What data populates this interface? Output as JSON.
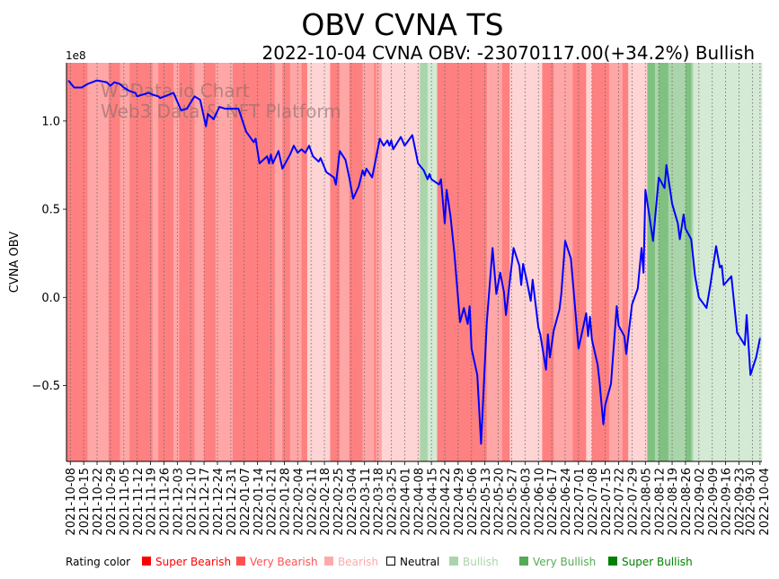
{
  "chart_data": {
    "type": "line",
    "title": "OBV CVNA TS",
    "subtitle": "2022-10-04 CVNA OBV: -23070117.00(+34.2%) Bullish",
    "ylabel": "CVNA OBV",
    "y_scale_label": "1e8",
    "y_multiplier": 100000000,
    "xlim": [
      "2021-10-06",
      "2022-10-05"
    ],
    "ylim": [
      -0.93,
      1.33
    ],
    "y_ticks": [
      {
        "v": 1.0,
        "label": "1.0"
      },
      {
        "v": 0.5,
        "label": "0.5"
      },
      {
        "v": 0.0,
        "label": "0.0"
      },
      {
        "v": -0.5,
        "label": "−0.5"
      }
    ],
    "x_ticks": [
      "2021-10-08",
      "2021-10-15",
      "2021-10-22",
      "2021-10-29",
      "2021-11-05",
      "2021-11-12",
      "2021-11-19",
      "2021-11-26",
      "2021-12-03",
      "2021-12-10",
      "2021-12-17",
      "2021-12-24",
      "2021-12-31",
      "2022-01-07",
      "2022-01-14",
      "2022-01-21",
      "2022-01-28",
      "2022-02-04",
      "2022-02-11",
      "2022-02-18",
      "2022-02-25",
      "2022-03-04",
      "2022-03-11",
      "2022-03-18",
      "2022-03-25",
      "2022-04-01",
      "2022-04-08",
      "2022-04-15",
      "2022-04-22",
      "2022-04-29",
      "2022-05-06",
      "2022-05-13",
      "2022-05-20",
      "2022-05-27",
      "2022-06-03",
      "2022-06-10",
      "2022-06-17",
      "2022-06-24",
      "2022-07-01",
      "2022-07-08",
      "2022-07-15",
      "2022-07-22",
      "2022-07-29",
      "2022-08-05",
      "2022-08-12",
      "2022-08-19",
      "2022-08-26",
      "2022-09-02",
      "2022-09-09",
      "2022-09-16",
      "2022-09-23",
      "2022-09-30",
      "2022-10-04"
    ],
    "grid": "vertical dotted",
    "watermark": [
      "W3Data.io Chart",
      "Web3 Data & NFT Platform"
    ],
    "series": [
      {
        "name": "CVNA OBV",
        "color": "#0000ff",
        "points": [
          [
            "2021-10-07",
            1.23
          ],
          [
            "2021-10-10",
            1.19
          ],
          [
            "2021-10-14",
            1.19
          ],
          [
            "2021-10-17",
            1.21
          ],
          [
            "2021-10-22",
            1.23
          ],
          [
            "2021-10-27",
            1.22
          ],
          [
            "2021-10-29",
            1.2
          ],
          [
            "2021-10-31",
            1.22
          ],
          [
            "2021-11-03",
            1.21
          ],
          [
            "2021-11-05",
            1.19
          ],
          [
            "2021-11-08",
            1.17
          ],
          [
            "2021-11-11",
            1.16
          ],
          [
            "2021-11-12",
            1.14
          ],
          [
            "2021-11-18",
            1.16
          ],
          [
            "2021-11-20",
            1.15
          ],
          [
            "2021-11-23",
            1.14
          ],
          [
            "2021-11-24",
            1.13
          ],
          [
            "2021-12-01",
            1.16
          ],
          [
            "2021-12-05",
            1.06
          ],
          [
            "2021-12-08",
            1.07
          ],
          [
            "2021-12-12",
            1.14
          ],
          [
            "2021-12-15",
            1.12
          ],
          [
            "2021-12-18",
            0.97
          ],
          [
            "2021-12-19",
            1.04
          ],
          [
            "2021-12-22",
            1.01
          ],
          [
            "2021-12-25",
            1.08
          ],
          [
            "2021-12-28",
            1.07
          ],
          [
            "2021-12-31",
            1.07
          ],
          [
            "2022-01-04",
            1.07
          ],
          [
            "2022-01-08",
            0.94
          ],
          [
            "2022-01-12",
            0.88
          ],
          [
            "2022-01-13",
            0.9
          ],
          [
            "2022-01-15",
            0.76
          ],
          [
            "2022-01-19",
            0.8
          ],
          [
            "2022-01-20",
            0.76
          ],
          [
            "2022-01-21",
            0.81
          ],
          [
            "2022-01-22",
            0.76
          ],
          [
            "2022-01-25",
            0.83
          ],
          [
            "2022-01-27",
            0.73
          ],
          [
            "2022-01-31",
            0.81
          ],
          [
            "2022-02-02",
            0.86
          ],
          [
            "2022-02-04",
            0.82
          ],
          [
            "2022-02-06",
            0.84
          ],
          [
            "2022-02-08",
            0.82
          ],
          [
            "2022-02-10",
            0.86
          ],
          [
            "2022-02-12",
            0.8
          ],
          [
            "2022-02-15",
            0.77
          ],
          [
            "2022-02-16",
            0.79
          ],
          [
            "2022-02-19",
            0.71
          ],
          [
            "2022-02-23",
            0.68
          ],
          [
            "2022-02-24",
            0.64
          ],
          [
            "2022-02-26",
            0.83
          ],
          [
            "2022-03-01",
            0.78
          ],
          [
            "2022-03-03",
            0.68
          ],
          [
            "2022-03-05",
            0.56
          ],
          [
            "2022-03-08",
            0.63
          ],
          [
            "2022-03-10",
            0.72
          ],
          [
            "2022-03-11",
            0.69
          ],
          [
            "2022-03-12",
            0.73
          ],
          [
            "2022-03-15",
            0.68
          ],
          [
            "2022-03-19",
            0.9
          ],
          [
            "2022-03-21",
            0.86
          ],
          [
            "2022-03-23",
            0.89
          ],
          [
            "2022-03-24",
            0.86
          ],
          [
            "2022-03-25",
            0.89
          ],
          [
            "2022-03-26",
            0.84
          ],
          [
            "2022-03-30",
            0.91
          ],
          [
            "2022-04-01",
            0.86
          ],
          [
            "2022-04-05",
            0.92
          ],
          [
            "2022-04-08",
            0.76
          ],
          [
            "2022-04-11",
            0.72
          ],
          [
            "2022-04-13",
            0.67
          ],
          [
            "2022-04-14",
            0.7
          ],
          [
            "2022-04-15",
            0.67
          ],
          [
            "2022-04-19",
            0.64
          ],
          [
            "2022-04-20",
            0.67
          ],
          [
            "2022-04-22",
            0.42
          ],
          [
            "2022-04-23",
            0.61
          ],
          [
            "2022-04-25",
            0.46
          ],
          [
            "2022-04-27",
            0.25
          ],
          [
            "2022-04-30",
            -0.14
          ],
          [
            "2022-05-02",
            -0.06
          ],
          [
            "2022-05-04",
            -0.15
          ],
          [
            "2022-05-05",
            -0.05
          ],
          [
            "2022-05-06",
            -0.29
          ],
          [
            "2022-05-09",
            -0.44
          ],
          [
            "2022-05-11",
            -0.83
          ],
          [
            "2022-05-14",
            -0.14
          ],
          [
            "2022-05-17",
            0.28
          ],
          [
            "2022-05-19",
            0.02
          ],
          [
            "2022-05-21",
            0.14
          ],
          [
            "2022-05-23",
            0.03
          ],
          [
            "2022-05-24",
            -0.1
          ],
          [
            "2022-05-28",
            0.28
          ],
          [
            "2022-05-31",
            0.18
          ],
          [
            "2022-06-01",
            0.07
          ],
          [
            "2022-06-02",
            0.19
          ],
          [
            "2022-06-04",
            0.09
          ],
          [
            "2022-06-06",
            -0.02
          ],
          [
            "2022-06-07",
            0.1
          ],
          [
            "2022-06-10",
            -0.17
          ],
          [
            "2022-06-11",
            -0.21
          ],
          [
            "2022-06-14",
            -0.41
          ],
          [
            "2022-06-15",
            -0.21
          ],
          [
            "2022-06-16",
            -0.34
          ],
          [
            "2022-06-18",
            -0.19
          ],
          [
            "2022-06-21",
            -0.07
          ],
          [
            "2022-06-22",
            0.02
          ],
          [
            "2022-06-24",
            0.32
          ],
          [
            "2022-06-27",
            0.22
          ],
          [
            "2022-07-01",
            -0.29
          ],
          [
            "2022-07-05",
            -0.09
          ],
          [
            "2022-07-06",
            -0.22
          ],
          [
            "2022-07-07",
            -0.11
          ],
          [
            "2022-07-08",
            -0.24
          ],
          [
            "2022-07-11",
            -0.38
          ],
          [
            "2022-07-12",
            -0.48
          ],
          [
            "2022-07-14",
            -0.72
          ],
          [
            "2022-07-15",
            -0.61
          ],
          [
            "2022-07-18",
            -0.49
          ],
          [
            "2022-07-21",
            -0.05
          ],
          [
            "2022-07-22",
            -0.16
          ],
          [
            "2022-07-25",
            -0.22
          ],
          [
            "2022-07-26",
            -0.32
          ],
          [
            "2022-07-29",
            -0.04
          ],
          [
            "2022-08-01",
            0.05
          ],
          [
            "2022-08-03",
            0.28
          ],
          [
            "2022-08-04",
            0.14
          ],
          [
            "2022-08-05",
            0.61
          ],
          [
            "2022-08-07",
            0.47
          ],
          [
            "2022-08-09",
            0.32
          ],
          [
            "2022-08-12",
            0.68
          ],
          [
            "2022-08-15",
            0.62
          ],
          [
            "2022-08-16",
            0.75
          ],
          [
            "2022-08-19",
            0.53
          ],
          [
            "2022-08-22",
            0.42
          ],
          [
            "2022-08-23",
            0.33
          ],
          [
            "2022-08-25",
            0.47
          ],
          [
            "2022-08-26",
            0.39
          ],
          [
            "2022-08-29",
            0.33
          ],
          [
            "2022-08-31",
            0.12
          ],
          [
            "2022-09-02",
            0.0
          ],
          [
            "2022-09-06",
            -0.06
          ],
          [
            "2022-09-08",
            0.07
          ],
          [
            "2022-09-11",
            0.29
          ],
          [
            "2022-09-13",
            0.17
          ],
          [
            "2022-09-14",
            0.18
          ],
          [
            "2022-09-15",
            0.07
          ],
          [
            "2022-09-19",
            0.12
          ],
          [
            "2022-09-22",
            -0.2
          ],
          [
            "2022-09-26",
            -0.27
          ],
          [
            "2022-09-27",
            -0.1
          ],
          [
            "2022-09-29",
            -0.44
          ],
          [
            "2022-10-02",
            -0.34
          ],
          [
            "2022-10-04",
            -0.2307
          ]
        ]
      }
    ],
    "rating_bands": [
      [
        "2021-10-06",
        "2021-10-17",
        "super_bearish"
      ],
      [
        "2021-10-17",
        "2021-10-28",
        "very_bearish"
      ],
      [
        "2021-10-28",
        "2021-11-03",
        "super_bearish"
      ],
      [
        "2021-11-03",
        "2021-11-08",
        "very_bearish"
      ],
      [
        "2021-11-08",
        "2021-11-20",
        "super_bearish"
      ],
      [
        "2021-11-20",
        "2021-11-23",
        "very_bearish"
      ],
      [
        "2021-11-23",
        "2021-12-01",
        "super_bearish"
      ],
      [
        "2021-12-01",
        "2021-12-04",
        "very_bearish"
      ],
      [
        "2021-12-04",
        "2021-12-12",
        "super_bearish"
      ],
      [
        "2021-12-12",
        "2021-12-17",
        "very_bearish"
      ],
      [
        "2021-12-17",
        "2021-12-23",
        "super_bearish"
      ],
      [
        "2021-12-23",
        "2022-01-01",
        "very_bearish"
      ],
      [
        "2022-01-01",
        "2022-01-23",
        "super_bearish"
      ],
      [
        "2022-01-23",
        "2022-01-27",
        "very_bearish"
      ],
      [
        "2022-01-27",
        "2022-01-31",
        "super_bearish"
      ],
      [
        "2022-01-31",
        "2022-02-06",
        "very_bearish"
      ],
      [
        "2022-02-06",
        "2022-02-09",
        "super_bearish"
      ],
      [
        "2022-02-09",
        "2022-02-21",
        "bearish"
      ],
      [
        "2022-02-21",
        "2022-02-26",
        "super_bearish"
      ],
      [
        "2022-02-26",
        "2022-03-03",
        "very_bearish"
      ],
      [
        "2022-03-03",
        "2022-03-10",
        "super_bearish"
      ],
      [
        "2022-03-10",
        "2022-03-16",
        "very_bearish"
      ],
      [
        "2022-03-16",
        "2022-03-17",
        "super_bearish"
      ],
      [
        "2022-03-17",
        "2022-03-20",
        "very_bearish"
      ],
      [
        "2022-03-20",
        "2022-04-09",
        "bearish"
      ],
      [
        "2022-04-09",
        "2022-04-13",
        "very_bullish"
      ],
      [
        "2022-04-13",
        "2022-04-18",
        "bullish"
      ],
      [
        "2022-04-18",
        "2022-05-14",
        "super_bearish"
      ],
      [
        "2022-05-14",
        "2022-05-22",
        "very_bearish"
      ],
      [
        "2022-05-22",
        "2022-05-26",
        "super_bearish"
      ],
      [
        "2022-05-26",
        "2022-06-12",
        "bearish"
      ],
      [
        "2022-06-12",
        "2022-06-18",
        "super_bearish"
      ],
      [
        "2022-06-18",
        "2022-06-28",
        "very_bearish"
      ],
      [
        "2022-06-28",
        "2022-07-05",
        "super_bearish"
      ],
      [
        "2022-07-05",
        "2022-07-08",
        "bearish"
      ],
      [
        "2022-07-08",
        "2022-07-17",
        "super_bearish"
      ],
      [
        "2022-07-17",
        "2022-07-24",
        "very_bearish"
      ],
      [
        "2022-07-24",
        "2022-07-27",
        "super_bearish"
      ],
      [
        "2022-07-27",
        "2022-08-06",
        "bearish"
      ],
      [
        "2022-08-06",
        "2022-08-10",
        "super_bullish"
      ],
      [
        "2022-08-10",
        "2022-08-12",
        "very_bullish"
      ],
      [
        "2022-08-12",
        "2022-08-17",
        "super_bullish"
      ],
      [
        "2022-08-17",
        "2022-08-26",
        "very_bullish"
      ],
      [
        "2022-08-26",
        "2022-08-29",
        "super_bullish"
      ],
      [
        "2022-08-29",
        "2022-08-30",
        "very_bullish"
      ],
      [
        "2022-08-30",
        "2022-10-05",
        "bullish"
      ]
    ],
    "band_colors": {
      "super_bearish": "#ff8080",
      "very_bearish": "#ffa6a6",
      "bearish": "#ffd4d4",
      "bullish": "#d4ead4",
      "very_bullish": "#aad5aa",
      "super_bullish": "#80c080"
    },
    "legend": {
      "title": "Rating color",
      "placement": "bottom",
      "items": [
        {
          "key": "super_bearish",
          "label": "Super Bearish",
          "color": "#ff0000"
        },
        {
          "key": "very_bearish",
          "label": "Very Bearish",
          "color": "#ff5050"
        },
        {
          "key": "bearish",
          "label": "Bearish",
          "color": "#ffaaaa"
        },
        {
          "key": "neutral",
          "label": "Neutral",
          "color": "#000000"
        },
        {
          "key": "bullish",
          "label": "Bullish",
          "color": "#aad5aa"
        },
        {
          "key": "very_bullish",
          "label": "Very Bullish",
          "color": "#55aa55"
        },
        {
          "key": "super_bullish",
          "label": "Super Bullish",
          "color": "#008000"
        }
      ]
    }
  }
}
